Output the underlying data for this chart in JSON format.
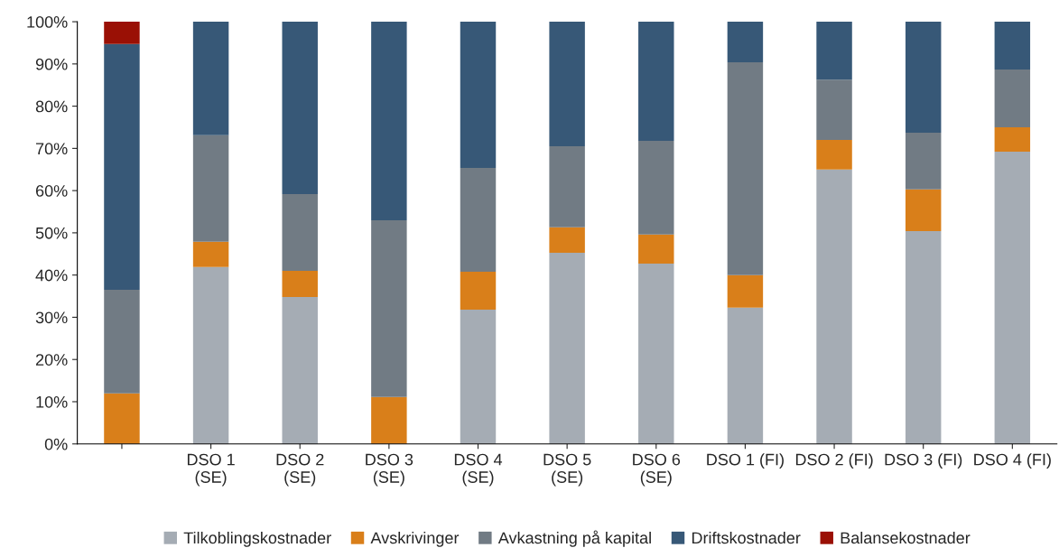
{
  "chart_data": {
    "type": "bar",
    "stacked": true,
    "categories": [
      null,
      "DSO 1\n(SE)",
      "DSO 2\n(SE)",
      "DSO 3\n(SE)",
      "DSO 4\n(SE)",
      "DSO 5\n(SE)",
      "DSO 6\n(SE)",
      "DSO 1 (FI)",
      "DSO 2 (FI)",
      "DSO 3 (FI)",
      "DSO 4 (FI)"
    ],
    "series": [
      {
        "name": "Tilkoblingskostnader",
        "color": "#a5acb4",
        "values": [
          0,
          41.9,
          34.8,
          0,
          31.8,
          45.3,
          42.7,
          32.3,
          65.0,
          50.4,
          69.2
        ]
      },
      {
        "name": "Avskrivinger",
        "color": "#d97f1a",
        "values": [
          12.0,
          6.0,
          6.2,
          11.1,
          9.0,
          6.0,
          6.9,
          7.7,
          7.0,
          9.9,
          5.8
        ]
      },
      {
        "name": "Avkastning på kapital",
        "color": "#717b84",
        "values": [
          24.5,
          25.2,
          18.2,
          41.9,
          24.6,
          19.2,
          22.2,
          50.4,
          14.3,
          13.4,
          13.7
        ]
      },
      {
        "name": "Driftskostnader",
        "color": "#375877",
        "values": [
          58.2,
          26.9,
          40.8,
          47.0,
          34.6,
          29.5,
          28.2,
          9.6,
          13.7,
          26.3,
          11.3
        ]
      },
      {
        "name": "Balansekostnader",
        "color": "#9a1005",
        "values": [
          5.3,
          0,
          0,
          0,
          0,
          0,
          0,
          0,
          0,
          0,
          0
        ]
      }
    ],
    "ylim": [
      0,
      100
    ],
    "yticks": [
      {
        "value": 0,
        "label": "0%"
      },
      {
        "value": 10,
        "label": "10%"
      },
      {
        "value": 20,
        "label": "20%"
      },
      {
        "value": 30,
        "label": "30%"
      },
      {
        "value": 40,
        "label": "40%"
      },
      {
        "value": 50,
        "label": "50%"
      },
      {
        "value": 60,
        "label": "60%"
      },
      {
        "value": 70,
        "label": "70%"
      },
      {
        "value": 80,
        "label": "80%"
      },
      {
        "value": 90,
        "label": "90%"
      },
      {
        "value": 100,
        "label": "100%"
      }
    ],
    "grid": false,
    "legend": "bottom"
  }
}
